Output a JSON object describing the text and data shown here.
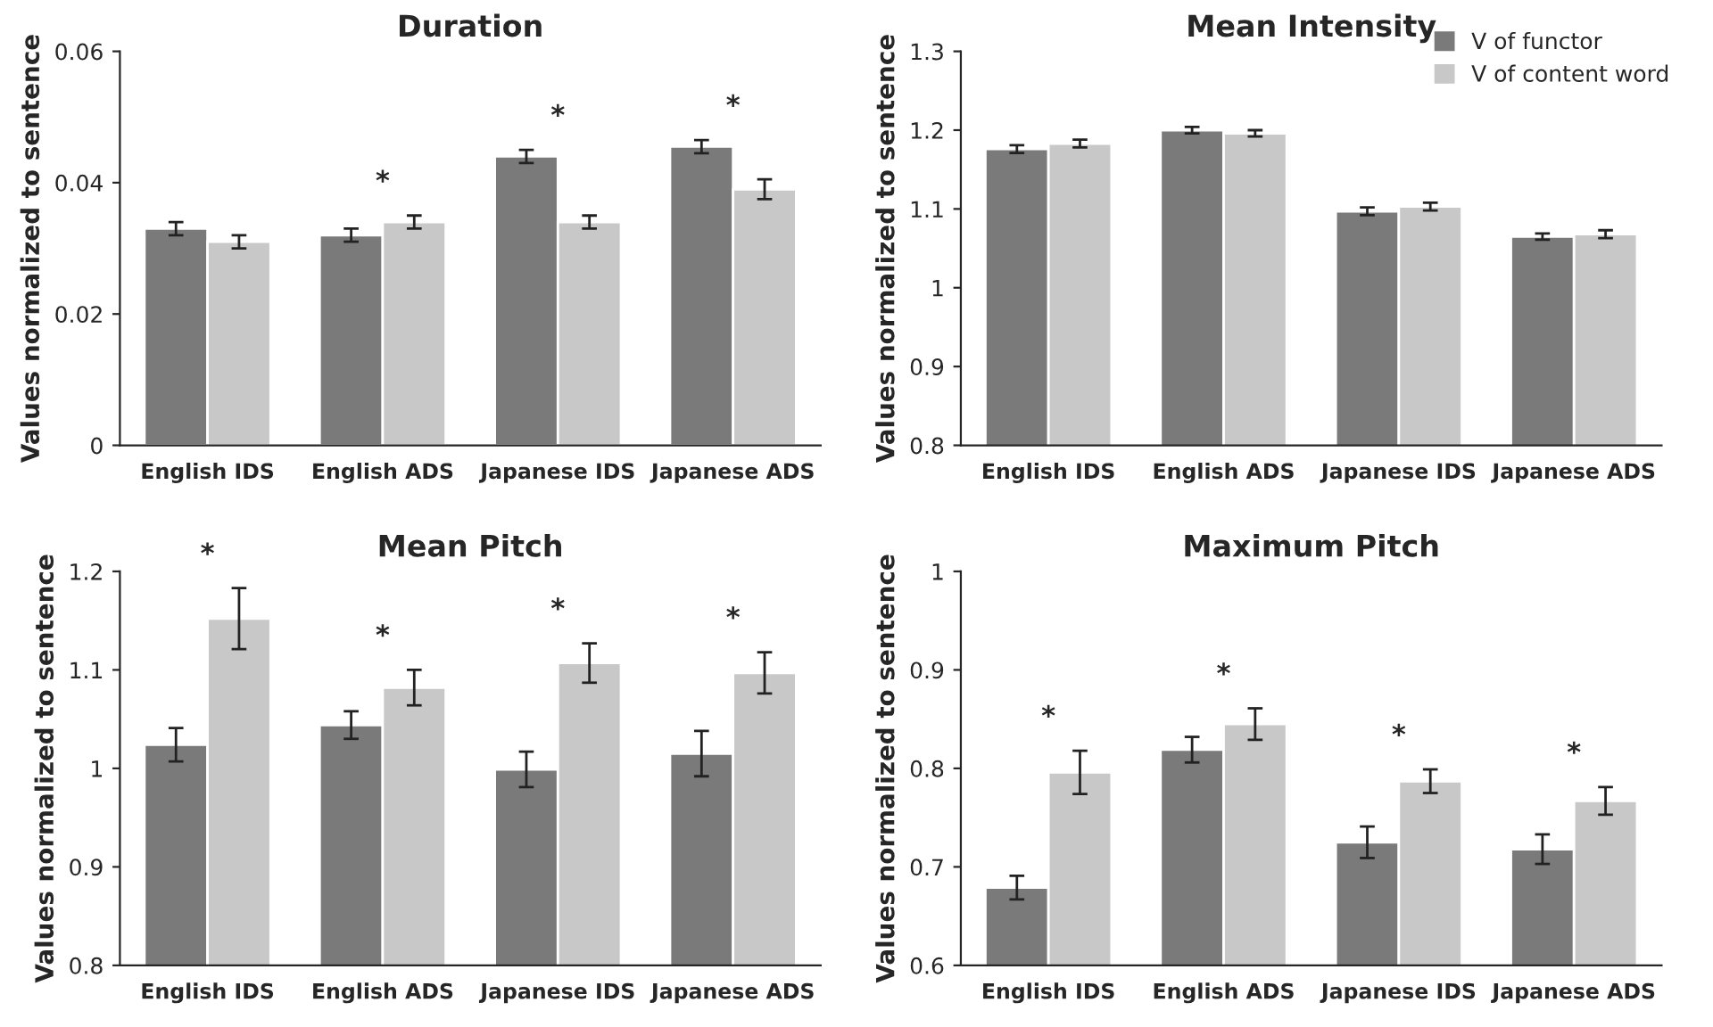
{
  "chart_data": [
    {
      "type": "bar",
      "title": "Duration",
      "ylabel": "Values normalized to sentence",
      "categories": [
        "English IDS",
        "English ADS",
        "Japanese IDS",
        "Japanese ADS"
      ],
      "ylim": [
        0,
        0.06
      ],
      "yticks": [
        0,
        0.02,
        0.04,
        0.06
      ],
      "grid": false,
      "legend": false,
      "series": [
        {
          "color": "#7a7a7a",
          "values": [
            0.033,
            0.032,
            0.044,
            0.0455
          ],
          "errors": [
            0.001,
            0.001,
            0.001,
            0.001
          ]
        },
        {
          "color": "#c8c8c8",
          "values": [
            0.031,
            0.034,
            0.034,
            0.039
          ],
          "errors": [
            0.001,
            0.001,
            0.001,
            0.0015
          ]
        }
      ],
      "annotations": [
        {
          "text": "*",
          "x": "English ADS",
          "y": 0.034
        },
        {
          "text": "*",
          "x": "Japanese IDS",
          "y": 0.044
        },
        {
          "text": "*",
          "x": "Japanese ADS",
          "y": 0.0455
        }
      ]
    },
    {
      "type": "bar",
      "title": "Mean Intensity",
      "ylabel": "Values normalized to sentence",
      "categories": [
        "English IDS",
        "English ADS",
        "Japanese IDS",
        "Japanese ADS"
      ],
      "ylim": [
        0.8,
        1.3
      ],
      "yticks": [
        0.8,
        0.9,
        1,
        1.1,
        1.2,
        1.3
      ],
      "grid": false,
      "legend": "top right",
      "series": [
        {
          "name": "V of functor",
          "color": "#7a7a7a",
          "values": [
            1.176,
            1.2,
            1.097,
            1.065
          ],
          "errors": [
            0.005,
            0.004,
            0.005,
            0.004
          ]
        },
        {
          "name": "V of content word",
          "color": "#c8c8c8",
          "values": [
            1.183,
            1.196,
            1.103,
            1.068
          ],
          "errors": [
            0.005,
            0.004,
            0.005,
            0.005
          ]
        }
      ]
    },
    {
      "type": "bar",
      "title": "Mean Pitch",
      "ylabel": "Values normalized to sentence",
      "categories": [
        "English IDS",
        "English ADS",
        "Japanese IDS",
        "Japanese ADS"
      ],
      "ylim": [
        0.8,
        1.2
      ],
      "yticks": [
        0.8,
        0.9,
        1,
        1.1,
        1.2
      ],
      "grid": false,
      "legend": false,
      "series": [
        {
          "color": "#7a7a7a",
          "values": [
            1.024,
            1.044,
            0.999,
            1.015
          ],
          "errors": [
            0.017,
            0.014,
            0.018,
            0.023
          ]
        },
        {
          "color": "#c8c8c8",
          "values": [
            1.152,
            1.082,
            1.107,
            1.097
          ],
          "errors": [
            0.031,
            0.018,
            0.02,
            0.021
          ]
        }
      ],
      "annotations": [
        {
          "text": "*",
          "x": "English IDS",
          "y": 1.152
        },
        {
          "text": "*",
          "x": "English ADS",
          "y": 1.082
        },
        {
          "text": "*",
          "x": "Japanese IDS",
          "y": 1.107
        },
        {
          "text": "*",
          "x": "Japanese ADS",
          "y": 1.097
        }
      ]
    },
    {
      "type": "bar",
      "title": "Maximum Pitch",
      "ylabel": "Values normalized to sentence",
      "categories": [
        "English IDS",
        "English ADS",
        "Japanese IDS",
        "Japanese ADS"
      ],
      "ylim": [
        0.6,
        1
      ],
      "yticks": [
        0.6,
        0.7,
        0.8,
        0.9,
        1
      ],
      "grid": false,
      "legend": false,
      "series": [
        {
          "color": "#7a7a7a",
          "values": [
            0.679,
            0.819,
            0.725,
            0.718
          ],
          "errors": [
            0.012,
            0.013,
            0.016,
            0.015
          ]
        },
        {
          "color": "#c8c8c8",
          "values": [
            0.796,
            0.845,
            0.787,
            0.767
          ],
          "errors": [
            0.022,
            0.016,
            0.012,
            0.014
          ]
        }
      ],
      "annotations": [
        {
          "text": "*",
          "x": "English IDS",
          "y": 0.796
        },
        {
          "text": "*",
          "x": "English ADS",
          "y": 0.845
        },
        {
          "text": "*",
          "x": "Japanese IDS",
          "y": 0.787
        },
        {
          "text": "*",
          "x": "Japanese ADS",
          "y": 0.767
        }
      ]
    }
  ]
}
